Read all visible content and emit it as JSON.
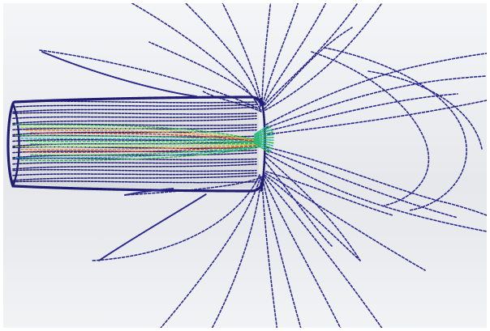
{
  "scene": {
    "colors": {
      "background_top": "#f4f5f7",
      "background_mid": "#e6e8eb",
      "streamline": "#2c2a8c",
      "streamline_dark": "#1f1c72",
      "core_green": "#2fb84a",
      "core_lime": "#9bd64a",
      "core_orange": "#e08a2a",
      "core_red": "#c43a2a",
      "core_cyan": "#2ab8b0"
    }
  }
}
